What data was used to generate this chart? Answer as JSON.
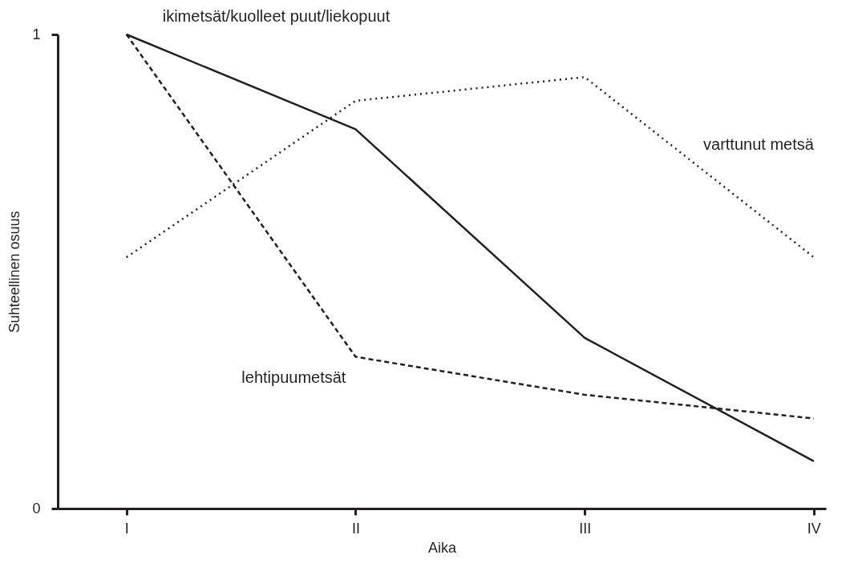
{
  "chart_data": {
    "type": "line",
    "xlabel": "Aika",
    "ylabel": "Suhteellinen osuus",
    "categories": [
      "I",
      "II",
      "III",
      "IV"
    ],
    "series": [
      {
        "name": "ikimetsät/kuolleet puut/liekopuut",
        "color": "#231f20",
        "line_style": "solid",
        "values": [
          1.0,
          0.8,
          0.36,
          0.1
        ]
      },
      {
        "name": "lehtipuumetsät",
        "color": "#231f20",
        "line_style": "dashed",
        "values": [
          1.0,
          0.32,
          0.24,
          0.19
        ]
      },
      {
        "name": "varttunut metsä",
        "color": "#231f20",
        "line_style": "dotted",
        "values": [
          0.53,
          0.86,
          0.91,
          0.53
        ]
      }
    ],
    "ylim": [
      0,
      1
    ],
    "yticks": [
      0,
      1
    ],
    "grid": false,
    "marker": "none"
  }
}
